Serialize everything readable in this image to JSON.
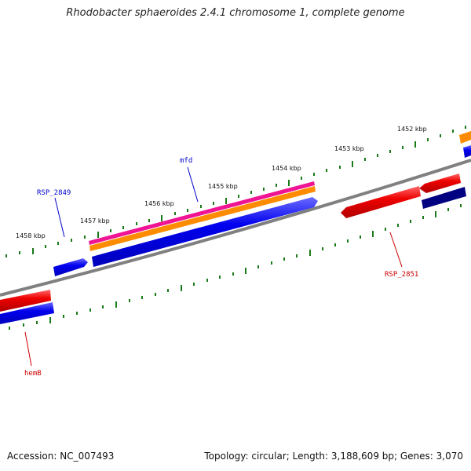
{
  "title": "Rhodobacter sphaeroides 2.4.1 chromosome 1, complete genome",
  "footer": {
    "accession": "Accession: NC_007493",
    "summary": "Topology: circular; Length: 3,188,609 bp; Genes: 3,070"
  },
  "scale_labels": [
    "1452 kbp",
    "1453 kbp",
    "1454 kbp",
    "1455 kbp",
    "1456 kbp",
    "1457 kbp",
    "1458 kbp"
  ],
  "gene_labels": {
    "mfd": "mfd",
    "rsp2849": "RSP_2849",
    "rsp2851": "RSP_2851",
    "hemb": "hemB"
  },
  "colors": {
    "backbone": "#808080",
    "tick": "#1a7a1a",
    "forward_label": "#0000cc",
    "reverse_label": "#cc0000",
    "red": "#ee0000",
    "blue": "#0000ee",
    "navy": "#000080",
    "pink": "#ee1493",
    "orange": "#ff8c00"
  }
}
